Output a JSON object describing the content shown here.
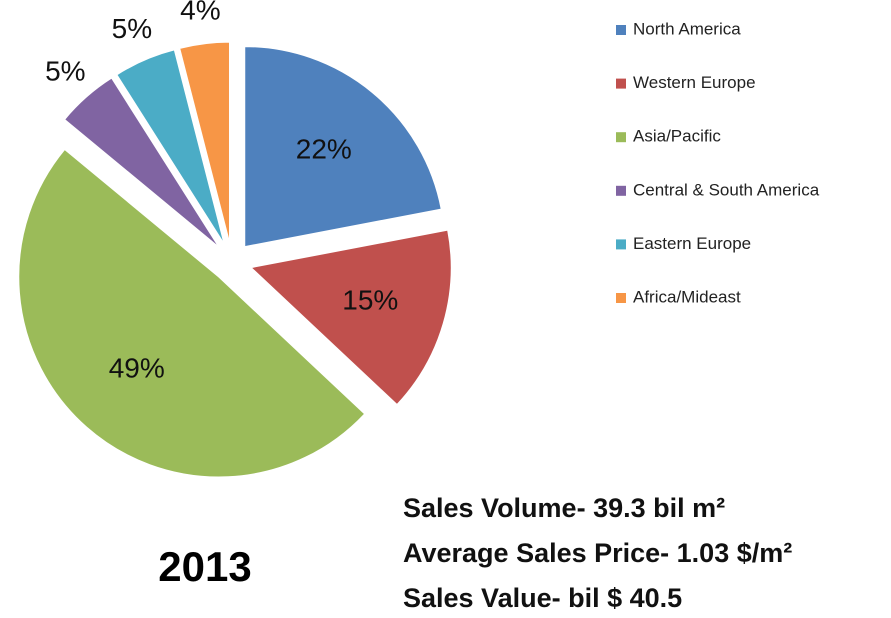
{
  "chart_data": {
    "type": "pie",
    "title": "2013",
    "categories": [
      "North America",
      "Western Europe",
      "Asia/Pacific",
      "Central & South America",
      "Eastern Europe",
      "Africa/Mideast"
    ],
    "values": [
      22,
      15,
      49,
      5,
      5,
      4
    ],
    "value_labels": [
      "22%",
      "15%",
      "49%",
      "5%",
      "5%",
      "4%"
    ],
    "colors": [
      "#4f81bd",
      "#c0504d",
      "#9bbb59",
      "#8064a2",
      "#4bacc6",
      "#f79646"
    ],
    "annotations": [
      "Sales Volume- 39.3 bil m²",
      "Average Sales Price- 1.03 $/m²",
      "Sales Value- bil $ 40.5"
    ],
    "legend": "right"
  }
}
